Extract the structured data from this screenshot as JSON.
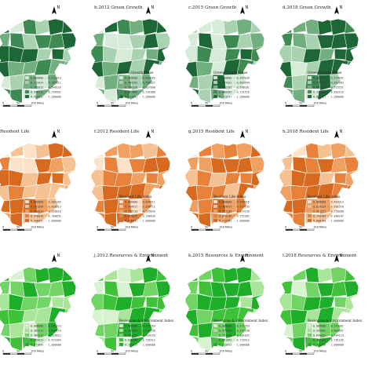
{
  "north_label": "N",
  "scale_labels": [
    "0",
    "50",
    "100 Miles"
  ],
  "panels": [
    {
      "title": "",
      "legend_title": "",
      "colors": [
        "#d6ecd9",
        "#a9d3b0",
        "#72af7f",
        "#3e8a53",
        "#1d6737"
      ],
      "legend": [
        "0.000000 - 0.222013",
        "0.222014 - 0.385911",
        "0.385912 - 0.548210",
        "0.548211 - 0.794931",
        "0.794932 - 1.000000"
      ]
    },
    {
      "title": "b.2012 Green Growth",
      "legend_title": "Green Growth Index",
      "colors": [
        "#d6ecd9",
        "#a9d3b0",
        "#72af7f",
        "#3e8a53",
        "#1d6737"
      ],
      "legend": [
        "0.000000 - 0.464262",
        "0.464263 - 0.566327",
        "0.566328 - 0.627898",
        "0.627899 - 0.701860",
        "0.701861 - 1.000000"
      ]
    },
    {
      "title": "c.2015 Green Growth",
      "legend_title": "Green Growth Index",
      "colors": [
        "#d6ecd9",
        "#a9d3b0",
        "#72af7f",
        "#3e8a53",
        "#1d6737"
      ],
      "legend": [
        "0.000000 - 0.497030",
        "0.497031 - 0.602104",
        "0.602105 - 0.668281",
        "0.668282 - 0.731516",
        "0.731517 - 1.000000"
      ]
    },
    {
      "title": "d.2018 Green Growth",
      "legend_title": "Green Growth Index",
      "colors": [
        "#d6ecd9",
        "#a9d3b0",
        "#72af7f",
        "#3e8a53",
        "#1d6737"
      ],
      "legend": [
        "0.000000 - 0.574951",
        "0.574952 - 0.657303",
        "0.657304 - 0.725531",
        "0.725532 - 0.802116",
        "0.802117 - 1.000000"
      ]
    },
    {
      "title": "Resident Life",
      "legend_title": "",
      "colors": [
        "#fbe2c8",
        "#f6c293",
        "#f0a060",
        "#e8823a",
        "#d86a1f"
      ],
      "legend": [
        "0.000000 - 0.301203",
        "0.301204 - 0.420013",
        "0.420014 - 0.550018",
        "0.550019 - 0.700051",
        "0.700052 - 1.000000"
      ]
    },
    {
      "title": "f.2012 Resident Life",
      "legend_title": "Resident Life Index",
      "colors": [
        "#fbe2c8",
        "#f6c293",
        "#f0a060",
        "#e8823a",
        "#d86a1f"
      ],
      "legend": [
        "0.000000 - 0.444911",
        "0.444912 - 0.558712",
        "0.558713 - 0.595034",
        "0.595035 - 0.706620",
        "0.706621 - 1.000000"
      ]
    },
    {
      "title": "g.2015 Resident Life",
      "legend_title": "Resident Life Index",
      "colors": [
        "#fbe2c8",
        "#f6c293",
        "#f0a060",
        "#e8823a",
        "#d86a1f"
      ],
      "legend": [
        "0.000000 - 0.469016",
        "0.469017 - 0.577195",
        "0.577196 - 0.673145",
        "0.673146 - 0.752381",
        "0.752382 - 1.000000"
      ]
    },
    {
      "title": "h.2018 Resident Life",
      "legend_title": "Resident Life Index",
      "colors": [
        "#fbe2c8",
        "#f6c293",
        "#f0a060",
        "#e8823a",
        "#d86a1f"
      ],
      "legend": [
        "0.000000 - 0.614313",
        "0.614314 - 0.691570",
        "0.691571 - 0.750308",
        "0.750309 - 0.808107",
        "0.808108 - 1.000000"
      ]
    },
    {
      "title": "",
      "legend_title": "",
      "colors": [
        "#d8f3d0",
        "#a9e69a",
        "#72d464",
        "#3fc23a",
        "#1fae2a"
      ],
      "legend": [
        "0.000000 - 0.301212",
        "0.301213 - 0.409214",
        "0.409215 - 0.529011",
        "0.529012 - 0.671054",
        "0.671055 - 1.000000"
      ]
    },
    {
      "title": "j.2012 Resources & Environment",
      "legend_title": "Resources & Environment Index",
      "colors": [
        "#d8f3d0",
        "#a9e69a",
        "#72d464",
        "#3fc23a",
        "#1fae2a"
      ],
      "legend": [
        "0.000000 - 0.441263",
        "0.441264 - 0.551238",
        "0.551239 - 0.620193",
        "0.620194 - 0.705412",
        "0.705413 - 1.000000"
      ]
    },
    {
      "title": "k.2015 Resources & Environment",
      "legend_title": "Resources & Environment Index",
      "colors": [
        "#d8f3d0",
        "#a9e69a",
        "#72d464",
        "#3fc23a",
        "#1fae2a"
      ],
      "legend": [
        "0.000000 - 0.471263",
        "0.471264 - 0.571238",
        "0.571239 - 0.661092",
        "0.661093 - 0.733412",
        "0.733413 - 1.000000"
      ]
    },
    {
      "title": "l.2018 Resources & Environment",
      "legend_title": "Resources & Environment Index",
      "colors": [
        "#d8f3d0",
        "#a9e69a",
        "#72d464",
        "#3fc23a",
        "#1fae2a"
      ],
      "legend": [
        "0.000000 - 0.543001",
        "0.543002 - 0.630051",
        "0.630052 - 0.704123",
        "0.704124 - 0.781105",
        "0.781106 - 1.000000"
      ]
    }
  ]
}
